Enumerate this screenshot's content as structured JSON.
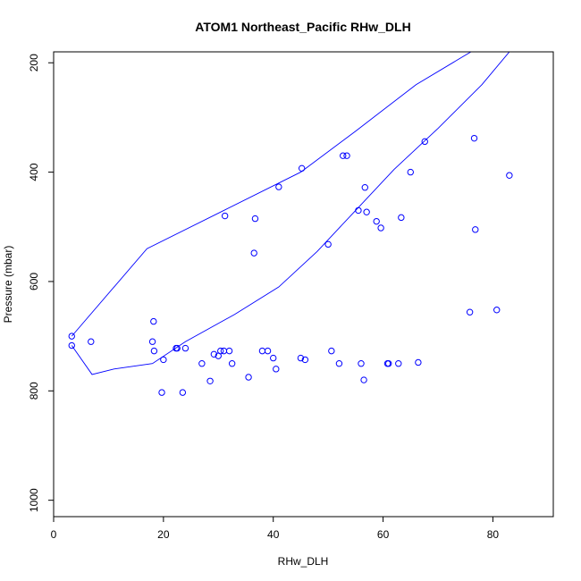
{
  "chart_data": {
    "type": "line",
    "title": "ATOM1 Northeast_Pacific RHw_DLH",
    "xlabel": "RHw_DLH",
    "ylabel": "Pressure (mbar)",
    "xlim": [
      0,
      91
    ],
    "ylim": [
      1030,
      180
    ],
    "y_reversed": true,
    "x_ticks": [
      0,
      20,
      40,
      60,
      80
    ],
    "y_ticks": [
      200,
      400,
      600,
      800,
      1000
    ],
    "series_color": "#0000ff",
    "marker": "open-circle",
    "series": [
      {
        "x": [
          3.3,
          17.0,
          31.0,
          45.0,
          55.0,
          66.0,
          76.0,
          83.0,
          78.0,
          70.0,
          62.0,
          55.0,
          48.0,
          41.0,
          33.0,
          24.0,
          18.0,
          11.0,
          7.0,
          3.3
        ],
        "y": [
          700,
          540,
          470,
          400,
          325,
          240,
          180,
          180,
          240,
          320,
          395,
          470,
          545,
          610,
          660,
          710,
          750,
          760,
          770,
          717
        ]
      }
    ],
    "points": {
      "x": [
        3.3,
        3.3,
        6.8,
        18.0,
        18.2,
        18.3,
        20.0,
        22.5,
        23.5,
        24.0,
        27.0,
        28.5,
        30.0,
        30.4,
        31.2,
        32.5,
        35.5,
        36.5,
        38.0,
        39.0,
        40.0,
        40.5,
        45.0,
        45.2,
        45.8,
        50.0,
        50.6,
        52.7,
        53.4,
        55.5,
        56.5,
        56.7,
        56.0,
        60.8,
        62.8,
        63.3,
        66.4,
        67.6,
        75.8,
        76.6,
        76.8,
        80.7,
        83.0,
        22.3,
        31.0,
        41.0,
        58.8,
        59.6,
        19.7,
        29.2,
        57.0,
        36.7,
        32.0,
        65.0,
        52.0,
        61.0
      ],
      "y": [
        700,
        717,
        710,
        710,
        673,
        727,
        743,
        722,
        803,
        722,
        750,
        782,
        736,
        727,
        480,
        750,
        775,
        548,
        727,
        727,
        740,
        760,
        740,
        393,
        743,
        532,
        727,
        370,
        370,
        470,
        780,
        428,
        750,
        750,
        750,
        483,
        748,
        344,
        656,
        338,
        505,
        652,
        406,
        722,
        727,
        427,
        490,
        502,
        803,
        733,
        473,
        485,
        727,
        400,
        750,
        750
      ]
    }
  }
}
